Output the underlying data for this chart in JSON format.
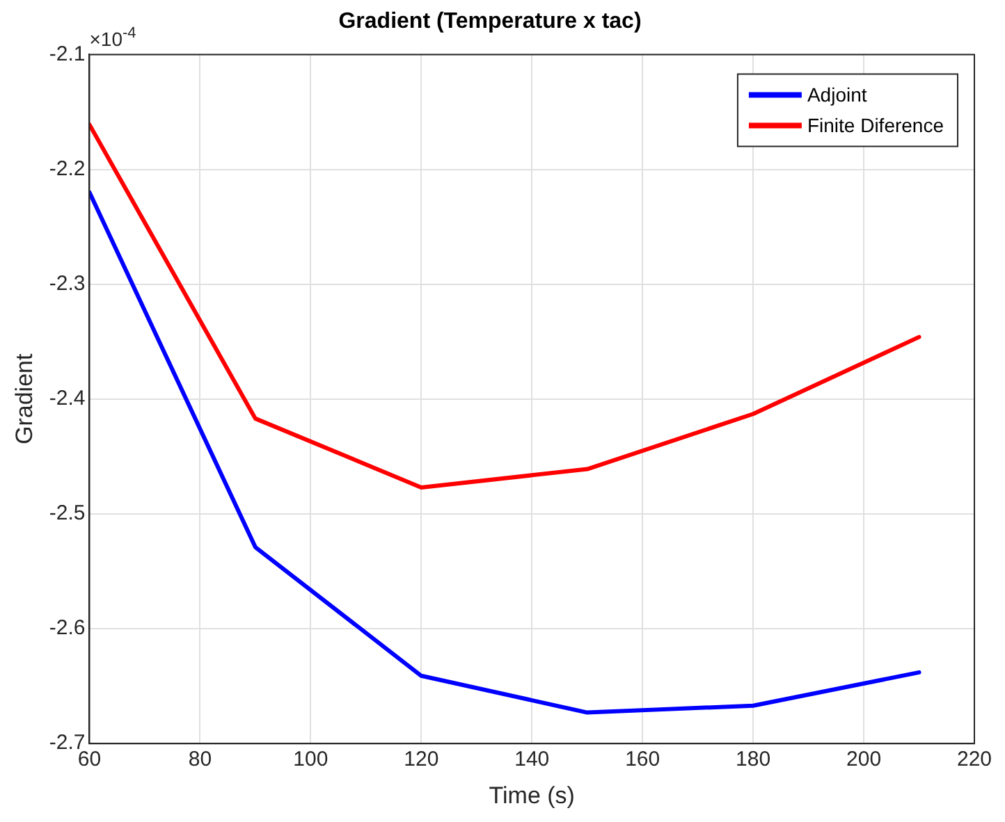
{
  "chart_data": {
    "type": "line",
    "title": "Gradient (Temperature x tac)",
    "xlabel": "Time (s)",
    "ylabel": "Gradient",
    "x": [
      60,
      90,
      120,
      150,
      180,
      210
    ],
    "series": [
      {
        "name": "Adjoint",
        "color": "#0000ff",
        "values": [
          -2.22,
          -2.529,
          -2.641,
          -2.673,
          -2.667,
          -2.638
        ]
      },
      {
        "name": "Finite Diference",
        "color": "#ff0000",
        "values": [
          -2.161,
          -2.417,
          -2.477,
          -2.461,
          -2.413,
          -2.346
        ]
      }
    ],
    "xlim": [
      60,
      220
    ],
    "xticks": [
      60,
      80,
      100,
      120,
      140,
      160,
      180,
      200,
      220
    ],
    "ylim": [
      -2.7,
      -2.1
    ],
    "yticks": [
      -2.7,
      -2.6,
      -2.5,
      -2.4,
      -2.3,
      -2.2,
      -2.1
    ],
    "annotations": [
      "×10$^{-4}$"
    ],
    "grid": true,
    "legend": "top right",
    "marker": "none",
    "line_style": "solid"
  }
}
